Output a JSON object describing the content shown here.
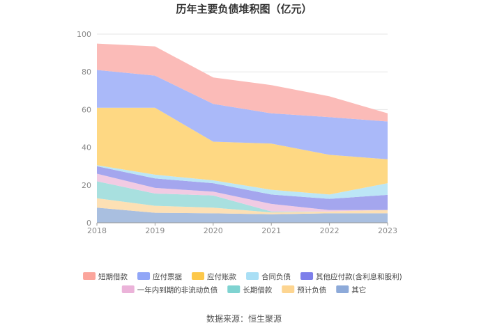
{
  "chart_data": {
    "type": "area",
    "stacked": true,
    "title": "历年主要负债堆积图（亿元）",
    "x": [
      "2018",
      "2019",
      "2020",
      "2021",
      "2022",
      "2023"
    ],
    "ylim": [
      0,
      100
    ],
    "yticks": [
      "0",
      "20",
      "40",
      "60",
      "80",
      "100"
    ],
    "series": [
      {
        "name": "其它",
        "color": "#a9bfe0",
        "values": [
          8.0,
          5.3,
          5.0,
          4.5,
          5.0,
          5.0
        ]
      },
      {
        "name": "预计负债",
        "color": "#fde0b4",
        "values": [
          5.0,
          3.7,
          3.0,
          1.0,
          1.0,
          1.8
        ]
      },
      {
        "name": "长期借款",
        "color": "#a8e0df",
        "values": [
          9.0,
          6.5,
          6.5,
          0.5,
          0.0,
          0.0
        ]
      },
      {
        "name": "一年内到期的非流动负债",
        "color": "#f1cbe3",
        "values": [
          4.0,
          3.0,
          2.0,
          4.0,
          0.7,
          0.0
        ]
      },
      {
        "name": "其他应付款(含利息和股利)",
        "color": "#a4a6ee",
        "values": [
          4.0,
          5.0,
          4.5,
          5.0,
          6.0,
          8.0
        ]
      },
      {
        "name": "合同负债",
        "color": "#bce6f6",
        "values": [
          0.5,
          2.0,
          1.5,
          2.5,
          2.3,
          6.2
        ]
      },
      {
        "name": "应付账款",
        "color": "#fed883",
        "values": [
          30.5,
          35.5,
          20.5,
          24.5,
          21.0,
          12.7
        ]
      },
      {
        "name": "应付票据",
        "color": "#aab9f9",
        "values": [
          20.0,
          17.0,
          20.0,
          16.0,
          20.0,
          20.0
        ]
      },
      {
        "name": "短期借款",
        "color": "#fbbbb8",
        "values": [
          14.0,
          15.5,
          14.0,
          15.0,
          11.0,
          4.3
        ]
      }
    ],
    "legend": [
      {
        "label": "短期借款",
        "color": "#fba59c"
      },
      {
        "label": "应付票据",
        "color": "#91a6f7"
      },
      {
        "label": "应付账款",
        "color": "#fdc84a"
      },
      {
        "label": "合同负债",
        "color": "#a9dff5"
      },
      {
        "label": "其他应付款(含利息和股利)",
        "color": "#7d7fea"
      },
      {
        "label": "一年内到期的非流动负债",
        "color": "#ebb3d9"
      },
      {
        "label": "长期借款",
        "color": "#7fd3d1"
      },
      {
        "label": "预计负债",
        "color": "#fdd591"
      },
      {
        "label": "其它",
        "color": "#8daad9"
      }
    ],
    "legend_position": "bottom",
    "source": "数据来源：恒生聚源"
  }
}
